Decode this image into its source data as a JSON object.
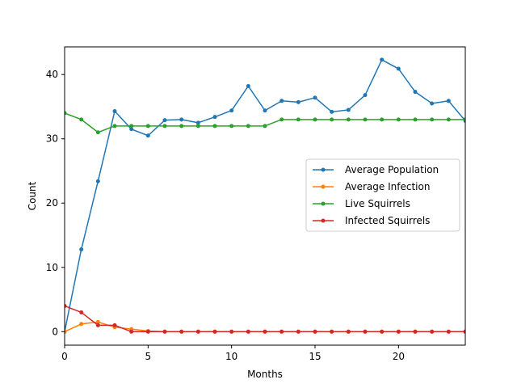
{
  "chart_data": {
    "type": "line",
    "xlabel": "Months",
    "ylabel": "Count",
    "xlim": [
      0,
      24
    ],
    "ylim": [
      -2.1,
      44.3
    ],
    "xticks": [
      0,
      5,
      10,
      15,
      20
    ],
    "yticks": [
      0,
      10,
      20,
      30,
      40
    ],
    "grid": false,
    "legend_position": "center-right",
    "x": [
      0,
      1,
      2,
      3,
      4,
      5,
      6,
      7,
      8,
      9,
      10,
      11,
      12,
      13,
      14,
      15,
      16,
      17,
      18,
      19,
      20,
      21,
      22,
      23,
      24
    ],
    "series": [
      {
        "name": "Average Population",
        "color": "#1f77b4",
        "values": [
          0,
          12.8,
          23.4,
          34.3,
          31.5,
          30.5,
          32.9,
          33.0,
          32.5,
          33.4,
          34.4,
          38.2,
          34.4,
          35.9,
          35.7,
          36.4,
          34.2,
          34.5,
          36.8,
          42.3,
          40.9,
          37.3,
          35.5,
          35.9,
          32.8
        ]
      },
      {
        "name": "Average Infection",
        "color": "#ff7f0e",
        "values": [
          0,
          1.2,
          1.5,
          0.7,
          0.4,
          0.1,
          0,
          0,
          0,
          0,
          0,
          0,
          0,
          0,
          0,
          0,
          0,
          0,
          0,
          0,
          0,
          0,
          0,
          0,
          0
        ]
      },
      {
        "name": "Live Squirrels",
        "color": "#2ca02c",
        "values": [
          34,
          33,
          31,
          32,
          32,
          32,
          32,
          32,
          32,
          32,
          32,
          32,
          32,
          33,
          33,
          33,
          33,
          33,
          33,
          33,
          33,
          33,
          33,
          33,
          33
        ]
      },
      {
        "name": "Infected Squirrels",
        "color": "#d62728",
        "values": [
          4,
          3,
          1,
          1,
          0,
          0,
          0,
          0,
          0,
          0,
          0,
          0,
          0,
          0,
          0,
          0,
          0,
          0,
          0,
          0,
          0,
          0,
          0,
          0,
          0
        ]
      }
    ]
  }
}
